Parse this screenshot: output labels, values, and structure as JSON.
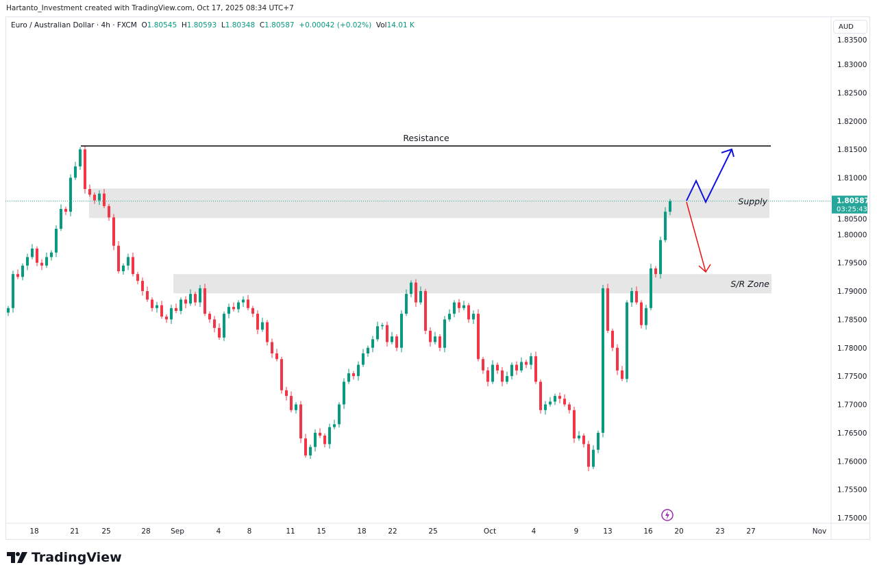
{
  "credit": "Hartanto_Investment created with TradingView.com, Oct 17, 2025 08:34 UTC+7",
  "legend": {
    "symbol": "Euro / Australian Dollar · 4h · FXCM",
    "o_label": "O",
    "o": "1.80545",
    "h_label": "H",
    "h": "1.80593",
    "l_label": "L",
    "l": "1.80348",
    "c_label": "C",
    "c": "1.80587",
    "change": "+0.00042 (+0.02%)",
    "vol_label": "Vol",
    "vol": "14.01 K"
  },
  "currency_button": "AUD",
  "brand": "TradingView",
  "colors": {
    "up": "#089981",
    "down": "#f23645",
    "zone": "#e6e6e6",
    "bull_path": "#1010e0",
    "bear_path": "#ee1111",
    "last_price": "#26a69a"
  },
  "chart_data": {
    "type": "candlestick",
    "ylim": [
      1.75,
      1.835
    ],
    "y_ticks": [
      "1.83500",
      "1.83000",
      "1.82500",
      "1.82000",
      "1.81500",
      "1.81000",
      "1.80500",
      "1.80000",
      "1.79500",
      "1.79000",
      "1.78500",
      "1.78000",
      "1.77500",
      "1.77000",
      "1.76500",
      "1.76000",
      "1.75500",
      "1.75000"
    ],
    "x_ticks": [
      "18",
      "21",
      "25",
      "28",
      "Sep",
      "4",
      "8",
      "11",
      "15",
      "18",
      "22",
      "25",
      "Oct",
      "4",
      "9",
      "13",
      "16",
      "20",
      "23",
      "27",
      "Nov"
    ],
    "last_price": "1.80587",
    "countdown": "03:25:43",
    "closes": [
      1.787,
      1.793,
      1.7925,
      1.7945,
      1.796,
      1.7975,
      1.795,
      1.7945,
      1.796,
      1.7968,
      1.801,
      1.8045,
      1.804,
      1.81,
      1.812,
      1.815,
      1.808,
      1.807,
      1.806,
      1.8072,
      1.805,
      1.803,
      1.798,
      1.7935,
      1.7945,
      1.796,
      1.793,
      1.7918,
      1.79,
      1.7885,
      1.787,
      1.7875,
      1.7855,
      1.785,
      1.787,
      1.7865,
      1.7885,
      1.7878,
      1.7895,
      1.788,
      1.7905,
      1.786,
      1.785,
      1.7835,
      1.7818,
      1.786,
      1.7872,
      1.7868,
      1.788,
      1.7885,
      1.787,
      1.786,
      1.7832,
      1.7845,
      1.781,
      1.779,
      1.778,
      1.7725,
      1.7715,
      1.769,
      1.77,
      1.764,
      1.761,
      1.7625,
      1.765,
      1.7645,
      1.763,
      1.766,
      1.7665,
      1.77,
      1.774,
      1.7755,
      1.775,
      1.777,
      1.779,
      1.78,
      1.7815,
      1.7838,
      1.784,
      1.781,
      1.782,
      1.78,
      1.786,
      1.7895,
      1.7915,
      1.788,
      1.79,
      1.783,
      1.781,
      1.782,
      1.78,
      1.785,
      1.786,
      1.788,
      1.787,
      1.7875,
      1.785,
      1.786,
      1.778,
      1.776,
      1.774,
      1.777,
      1.776,
      1.774,
      1.775,
      1.777,
      1.776,
      1.7775,
      1.777,
      1.7785,
      1.774,
      1.769,
      1.77,
      1.7705,
      1.7715,
      1.771,
      1.77,
      1.769,
      1.764,
      1.7645,
      1.763,
      1.759,
      1.762,
      1.765,
      1.7905,
      1.783,
      1.78,
      1.776,
      1.7745,
      1.788,
      1.79,
      1.788,
      1.784,
      1.787,
      1.794,
      1.793,
      1.799,
      1.804,
      1.80587
    ],
    "annotations": {
      "resistance": {
        "label": "Resistance",
        "price": 1.8156
      },
      "supply": {
        "label": "Supply",
        "top": 1.8081,
        "bottom": 1.8029
      },
      "sr_zone": {
        "label": "S/R Zone",
        "top": 1.793,
        "bottom": 1.7896
      }
    }
  }
}
